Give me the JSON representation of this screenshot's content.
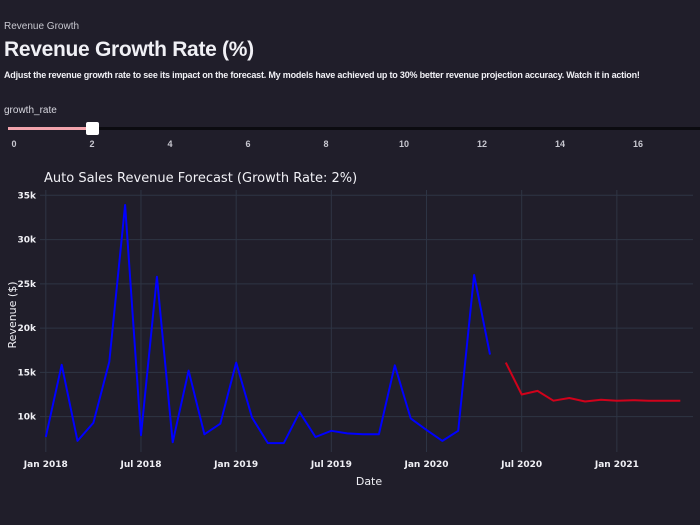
{
  "page": {
    "breadcrumb": "Revenue Growth",
    "title": "Revenue Growth Rate (%)",
    "description": "Adjust the revenue growth rate to see its impact on the forecast. My models have achieved up to 30% better revenue projection accuracy. Watch it in action!"
  },
  "slider": {
    "label": "growth_rate",
    "value": 2,
    "ticks": [
      "0",
      "2",
      "4",
      "6",
      "8",
      "10",
      "12",
      "14",
      "16"
    ],
    "fill_color": "#f2a4ad"
  },
  "chart_data": {
    "type": "line",
    "title": "Auto Sales Revenue Forecast (Growth Rate: 2%)",
    "xlabel": "Date",
    "ylabel": "Revenue ($)",
    "x_ticks": [
      "Jan 2018",
      "Jul 2018",
      "Jan 2019",
      "Jul 2019",
      "Jan 2020",
      "Jul 2020",
      "Jan 2021"
    ],
    "y_ticks": [
      "10k",
      "15k",
      "20k",
      "25k",
      "30k",
      "35k"
    ],
    "y_tick_values": [
      10000,
      15000,
      20000,
      25000,
      30000,
      35000
    ],
    "ylim": [
      6000,
      35600
    ],
    "xlim": [
      "2017-12-20",
      "2021-05-25"
    ],
    "grid": true,
    "series": [
      {
        "color": "#0000ff",
        "x": [
          "2018-01",
          "2018-02",
          "2018-03",
          "2018-04",
          "2018-05",
          "2018-06",
          "2018-07",
          "2018-08",
          "2018-09",
          "2018-10",
          "2018-11",
          "2018-12",
          "2019-01",
          "2019-02",
          "2019-03",
          "2019-04",
          "2019-05",
          "2019-06",
          "2019-07",
          "2019-08",
          "2019-09",
          "2019-10",
          "2019-11",
          "2019-12",
          "2020-01",
          "2020-02",
          "2020-03",
          "2020-04",
          "2020-05"
        ],
        "values": [
          7700,
          15850,
          7250,
          9300,
          16200,
          33900,
          7900,
          25800,
          7100,
          15200,
          8000,
          9200,
          16100,
          9900,
          7000,
          7000,
          10500,
          7700,
          8400,
          8100,
          8000,
          8000,
          15800,
          9800,
          8500,
          7250,
          8400,
          26000,
          17000
        ]
      },
      {
        "color": "#d0021b",
        "x": [
          "2020-06",
          "2020-07",
          "2020-08",
          "2020-09",
          "2020-10",
          "2020-11",
          "2020-12",
          "2021-01",
          "2021-02",
          "2021-03",
          "2021-04",
          "2021-05"
        ],
        "values": [
          16100,
          12500,
          12900,
          11800,
          12100,
          11700,
          11900,
          11800,
          11850,
          11800,
          11800,
          11800
        ]
      }
    ]
  }
}
